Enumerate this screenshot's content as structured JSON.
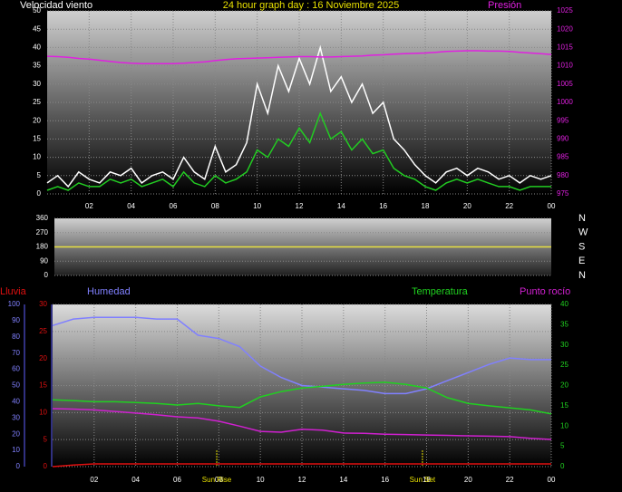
{
  "chart_data": [
    {
      "type": "line",
      "title": "24 hour graph day : 16 Noviembre 2025",
      "ylabel": "Velocidad viento",
      "x": [
        0,
        0.5,
        1,
        1.5,
        2,
        2.5,
        3,
        3.5,
        4,
        4.5,
        5,
        5.5,
        6,
        6.5,
        7,
        7.5,
        8,
        8.5,
        9,
        9.5,
        10,
        10.5,
        11,
        11.5,
        12,
        12.5,
        13,
        13.5,
        14,
        14.5,
        15,
        15.5,
        16,
        16.5,
        17,
        17.5,
        18,
        18.5,
        19,
        19.5,
        20,
        20.5,
        21,
        21.5,
        22,
        22.5,
        23,
        23.5,
        24
      ],
      "xlim": [
        0,
        24
      ],
      "xticks": [
        {
          "value": 2,
          "label": "02"
        },
        {
          "value": 4,
          "label": "04"
        },
        {
          "value": 6,
          "label": "06"
        },
        {
          "value": 8,
          "label": "08"
        },
        10,
        12,
        14,
        16,
        18,
        20,
        22,
        {
          "value": 24,
          "label": "00"
        }
      ],
      "ylim": [
        0,
        50
      ],
      "yticks": [
        0,
        5,
        10,
        15,
        20,
        25,
        30,
        35,
        40,
        45,
        50
      ],
      "y2lim": [
        975,
        1025
      ],
      "y2ticks": [
        975,
        980,
        985,
        990,
        995,
        1000,
        1005,
        1010,
        1015,
        1020,
        1025
      ],
      "grid": true,
      "series": [
        {
          "color": "#ffffff",
          "values": [
            3,
            5,
            2,
            6,
            4,
            3,
            6,
            5,
            7,
            3,
            5,
            6,
            4,
            10,
            6,
            4,
            13,
            6,
            8,
            14,
            30,
            22,
            35,
            28,
            37,
            30,
            40,
            28,
            32,
            25,
            30,
            22,
            25,
            15,
            12,
            8,
            5,
            3,
            6,
            7,
            5,
            7,
            6,
            4,
            5,
            3,
            5,
            4,
            5
          ]
        },
        {
          "color": "#22cc22",
          "values": [
            1,
            2,
            1,
            3,
            2,
            2,
            4,
            3,
            4,
            2,
            3,
            4,
            2,
            6,
            3,
            2,
            5,
            3,
            4,
            6,
            12,
            10,
            15,
            13,
            18,
            14,
            22,
            15,
            17,
            12,
            15,
            11,
            12,
            7,
            5,
            4,
            2,
            1,
            3,
            4,
            3,
            4,
            3,
            2,
            2,
            1,
            2,
            2,
            2
          ]
        },
        {
          "name": "Presión",
          "color": "#e020e0",
          "axis": "y2",
          "values": [
            1012.6,
            1012.5,
            1012.3,
            1012.0,
            1011.8,
            1011.5,
            1011.2,
            1010.9,
            1010.7,
            1010.6,
            1010.6,
            1010.6,
            1010.6,
            1010.7,
            1010.9,
            1011.1,
            1011.4,
            1011.7,
            1011.9,
            1012.0,
            1012.1,
            1012.2,
            1012.3,
            1012.4,
            1012.5,
            1012.5,
            1012.4,
            1012.4,
            1012.5,
            1012.6,
            1012.7,
            1012.9,
            1013.0,
            1013.2,
            1013.3,
            1013.4,
            1013.5,
            1013.7,
            1013.9,
            1014.0,
            1014.1,
            1014.1,
            1014.0,
            1014.0,
            1013.9,
            1013.7,
            1013.5,
            1013.3,
            1013.1
          ]
        }
      ]
    },
    {
      "type": "line",
      "x": [
        0,
        1,
        2,
        3,
        4,
        5,
        6,
        7,
        8,
        9,
        10,
        11,
        12,
        13,
        14,
        15,
        16,
        17,
        18,
        19,
        20,
        21,
        22,
        23,
        24
      ],
      "xlim": [
        0,
        24
      ],
      "ylim": [
        0,
        360
      ],
      "yticks": [
        0,
        90,
        180,
        270,
        360
      ],
      "grid": true,
      "compass": [
        "N",
        "W",
        "S",
        "E",
        "N"
      ],
      "series": [
        {
          "color": "#e8e040",
          "values": [
            180,
            180,
            180,
            180,
            180,
            180,
            180,
            180,
            180,
            180,
            180,
            180,
            180,
            180,
            180,
            180,
            180,
            180,
            180,
            180,
            180,
            180,
            180,
            180,
            180
          ]
        }
      ]
    },
    {
      "type": "line",
      "x": [
        0,
        1,
        2,
        3,
        4,
        5,
        6,
        7,
        8,
        9,
        10,
        11,
        12,
        13,
        14,
        15,
        16,
        17,
        18,
        19,
        20,
        21,
        22,
        23,
        24
      ],
      "xlim": [
        0,
        24
      ],
      "xticks": [
        {
          "value": 2,
          "label": "02"
        },
        {
          "value": 4,
          "label": "04"
        },
        {
          "value": 6,
          "label": "06"
        },
        {
          "value": 8,
          "label": "08"
        },
        10,
        12,
        14,
        16,
        18,
        20,
        22,
        {
          "value": 24,
          "label": "00"
        }
      ],
      "ylim": [
        0,
        30
      ],
      "yticks": [
        0,
        5,
        10,
        15,
        20,
        25,
        30
      ],
      "y3lim": [
        0,
        100
      ],
      "y3ticks": [
        0,
        10,
        20,
        30,
        40,
        50,
        60,
        70,
        80,
        90,
        100
      ],
      "y2lim": [
        0,
        40
      ],
      "y2ticks": [
        0,
        5,
        10,
        15,
        20,
        25,
        30,
        35,
        40
      ],
      "grid": true,
      "markers": [
        {
          "x": 7.9,
          "label": "Sun Rise"
        },
        {
          "x": 17.8,
          "label": "Sun Set"
        }
      ],
      "series": [
        {
          "name": "Lluvia",
          "color": "#e01010",
          "values": [
            0,
            0.3,
            0.5,
            0.5,
            0.5,
            0.5,
            0.5,
            0.5,
            0.5,
            0.5,
            0.5,
            0.5,
            0.5,
            0.5,
            0.5,
            0.5,
            0.5,
            0.5,
            0.5,
            0.5,
            0.5,
            0.5,
            0.5,
            0.5,
            0.5
          ]
        },
        {
          "name": "Humedad",
          "color": "#8080ff",
          "axis": "y3",
          "values": [
            87,
            91,
            92,
            92,
            92,
            91,
            91,
            81,
            79,
            74,
            62,
            55,
            50,
            49,
            48,
            47,
            45,
            45,
            48,
            53,
            58,
            63,
            67,
            66,
            66
          ]
        },
        {
          "name": "Temperatura",
          "color": "#20d020",
          "axis": "y2",
          "values": [
            16.5,
            16.3,
            16.0,
            16.0,
            15.8,
            15.6,
            15.2,
            15.6,
            15.0,
            14.6,
            17.2,
            18.5,
            19.4,
            19.8,
            20.3,
            20.6,
            20.8,
            20.3,
            19.4,
            17.0,
            15.6,
            15.0,
            14.5,
            14.0,
            13.0
          ]
        },
        {
          "name": "Punto rocío",
          "color": "#d020d0",
          "axis": "y2",
          "values": [
            14.3,
            14.2,
            14.0,
            13.6,
            13.2,
            12.8,
            12.3,
            12.0,
            11.2,
            10.0,
            8.7,
            8.5,
            9.2,
            9.0,
            8.3,
            8.2,
            8.0,
            7.9,
            7.8,
            7.7,
            7.6,
            7.5,
            7.4,
            7.0,
            6.7
          ]
        }
      ]
    }
  ]
}
